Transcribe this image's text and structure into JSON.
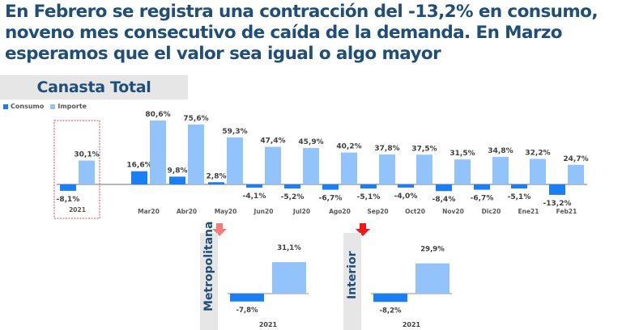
{
  "headline": "En Febrero se registra una contracción del -13,2% en consumo, noveno mes consecutivo de caída de la demanda. En Marzo esperamos que el valor sea igual o algo mayor",
  "section_title": "Canasta Total",
  "legend": [
    {
      "label": "Consumo",
      "color": "#1a7ef5"
    },
    {
      "label": "Importe",
      "color": "#93c3fb"
    }
  ],
  "colors": {
    "consumo": "#1a7ef5",
    "importe": "#93c3fb",
    "title": "#1f4e79",
    "axis": "#8c8c8c",
    "highlight_box": "#e0474c",
    "arrow_light": "#f87a7a",
    "arrow_strong": "#f01818"
  },
  "chart_data": [
    {
      "type": "bar",
      "title": "Canasta Total",
      "categories": [
        "2021",
        "Mar20",
        "Abr20",
        "May20",
        "Jun20",
        "Jul20",
        "Ago20",
        "Sep20",
        "Oct20",
        "Nov20",
        "Dic20",
        "Ene21",
        "Feb21"
      ],
      "series": [
        {
          "name": "Consumo",
          "values": [
            -8.1,
            16.6,
            9.8,
            2.8,
            -4.1,
            -5.2,
            -6.7,
            -5.1,
            -4.0,
            -8.4,
            -6.7,
            -5.1,
            -13.2
          ],
          "labels": [
            "-8,1%",
            "16,6%",
            "9,8%",
            "2,8%",
            "-4,1%",
            "-5,2%",
            "-6,7%",
            "-5,1%",
            "-4,0%",
            "-8,4%",
            "-6,7%",
            "-5,1%",
            "-13,2%"
          ]
        },
        {
          "name": "Importe",
          "values": [
            30.1,
            80.6,
            75.6,
            59.3,
            47.4,
            45.9,
            40.2,
            37.8,
            37.5,
            31.5,
            34.8,
            32.2,
            24.7
          ],
          "labels": [
            "30,1%",
            "80,6%",
            "75,6%",
            "59,3%",
            "47,4%",
            "45,9%",
            "40,2%",
            "37,8%",
            "37,5%",
            "31,5%",
            "34,8%",
            "32,2%",
            "24,7%"
          ]
        }
      ],
      "highlighted_category": "2021",
      "legend_position": "top-left",
      "ylim": [
        -15,
        85
      ],
      "grid": false
    },
    {
      "type": "bar",
      "title": "Metropolitana",
      "categories": [
        "2021"
      ],
      "series": [
        {
          "name": "Consumo",
          "values": [
            -7.8
          ],
          "labels": [
            "-7,8%"
          ]
        },
        {
          "name": "Importe",
          "values": [
            31.1
          ],
          "labels": [
            "31,1%"
          ]
        }
      ],
      "trend_arrow": "down"
    },
    {
      "type": "bar",
      "title": "Interior",
      "categories": [
        "2021"
      ],
      "series": [
        {
          "name": "Consumo",
          "values": [
            -8.2
          ],
          "labels": [
            "-8,2%"
          ]
        },
        {
          "name": "Importe",
          "values": [
            29.9
          ],
          "labels": [
            "29,9%"
          ]
        }
      ],
      "trend_arrow": "down"
    }
  ]
}
